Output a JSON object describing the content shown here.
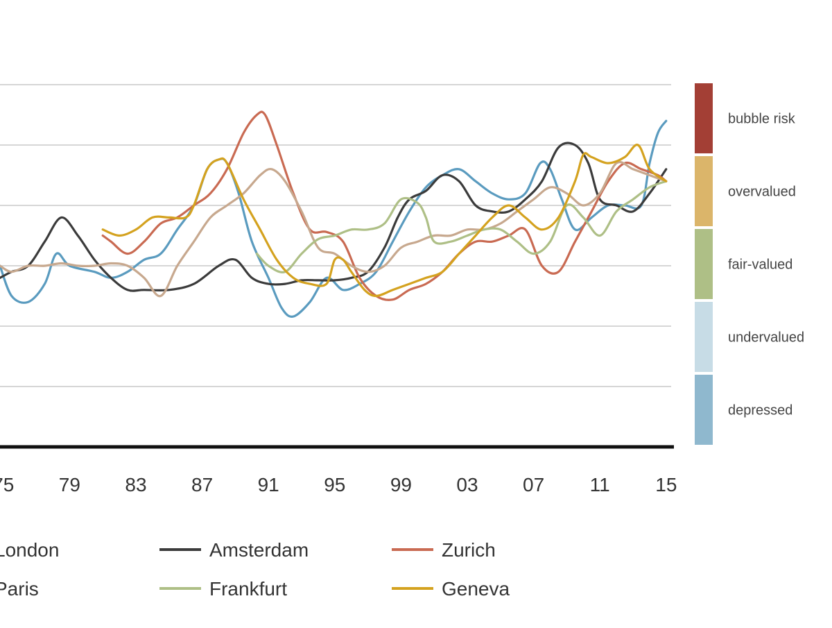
{
  "chart_data": {
    "type": "line",
    "title": "",
    "xlabel": "",
    "ylabel": "",
    "x_ticks": [
      {
        "value": 1975,
        "label": "75"
      },
      {
        "value": 1979,
        "label": "79"
      },
      {
        "value": 1983,
        "label": "83"
      },
      {
        "value": 1987,
        "label": "87"
      },
      {
        "value": 1991,
        "label": "91"
      },
      {
        "value": 1995,
        "label": "95"
      },
      {
        "value": 1999,
        "label": "99"
      },
      {
        "value": 2003,
        "label": "03"
      },
      {
        "value": 2007,
        "label": "07"
      },
      {
        "value": 2011,
        "label": "11"
      },
      {
        "value": 2015,
        "label": "15"
      }
    ],
    "xlim": [
      1974.8,
      2015.3
    ],
    "ylim": [
      -2.0,
      1.0
    ],
    "y_gridlines": [
      -1.5,
      -1.0,
      -0.5,
      0.0,
      0.5,
      1.0
    ],
    "grid": true,
    "bands": [
      {
        "label": "bubble risk",
        "color": "#a33f35"
      },
      {
        "label": "overvalued",
        "color": "#dbb56a"
      },
      {
        "label": "fair-valued",
        "color": "#aebf86"
      },
      {
        "label": "undervalued",
        "color": "#c7dce6"
      },
      {
        "label": "depressed",
        "color": "#8fb8ce"
      }
    ],
    "series": [
      {
        "name": "London",
        "color": "#5a9bbf",
        "x": [
          1974.8,
          1975.5,
          1976.5,
          1977.5,
          1978.2,
          1979,
          1980.5,
          1981.5,
          1982.5,
          1983.5,
          1984.5,
          1985.5,
          1986.5,
          1987.3,
          1988,
          1988.5,
          1989.2,
          1990,
          1991,
          1991.8,
          1992.5,
          1993.5,
          1994.5,
          1995.5,
          1996.5,
          1997.5,
          1998.5,
          1999.5,
          2000.5,
          2001.5,
          2002.5,
          2003.5,
          2004.5,
          2005.5,
          2006.5,
          2007.4,
          2008,
          2008.7,
          2009.5,
          2010.5,
          2011.5,
          2012.5,
          2013.5,
          2014,
          2014.5,
          2015
        ],
        "y": [
          -0.5,
          -0.75,
          -0.8,
          -0.65,
          -0.4,
          -0.5,
          -0.55,
          -0.6,
          -0.55,
          -0.45,
          -0.4,
          -0.2,
          0.0,
          0.3,
          0.38,
          0.35,
          0.1,
          -0.3,
          -0.6,
          -0.85,
          -0.92,
          -0.8,
          -0.6,
          -0.7,
          -0.65,
          -0.55,
          -0.3,
          -0.05,
          0.15,
          0.25,
          0.3,
          0.2,
          0.1,
          0.05,
          0.1,
          0.35,
          0.3,
          0.05,
          -0.2,
          -0.1,
          0.0,
          0.0,
          0.0,
          0.35,
          0.6,
          0.7
        ]
      },
      {
        "name": "Amsterdam",
        "color": "#3b3b3b",
        "x": [
          1974.8,
          1975.5,
          1976.5,
          1977.5,
          1978.5,
          1979.5,
          1980.5,
          1981.5,
          1982.5,
          1983.5,
          1985,
          1986.5,
          1988,
          1989,
          1990,
          1991,
          1992,
          1993,
          1994,
          1995,
          1996,
          1997,
          1998,
          1998.8,
          1999.5,
          2000.5,
          2001.5,
          2002.5,
          2003.5,
          2004.5,
          2005.5,
          2006.5,
          2007.5,
          2008.5,
          2009.5,
          2010.3,
          2011,
          2012,
          2013,
          2014,
          2015
        ],
        "y": [
          -0.6,
          -0.55,
          -0.5,
          -0.3,
          -0.1,
          -0.25,
          -0.45,
          -0.6,
          -0.7,
          -0.7,
          -0.7,
          -0.65,
          -0.5,
          -0.45,
          -0.6,
          -0.65,
          -0.65,
          -0.62,
          -0.62,
          -0.62,
          -0.6,
          -0.55,
          -0.35,
          -0.1,
          0.05,
          0.12,
          0.25,
          0.2,
          0.0,
          -0.05,
          -0.05,
          0.05,
          0.2,
          0.48,
          0.5,
          0.35,
          0.05,
          0.0,
          -0.05,
          0.1,
          0.3
        ]
      },
      {
        "name": "Zurich",
        "color": "#c96a52",
        "x": [
          1981,
          1981.5,
          1982.5,
          1983.5,
          1984.5,
          1985.5,
          1986.5,
          1987.5,
          1988.5,
          1989.5,
          1990.3,
          1990.8,
          1991.5,
          1992.5,
          1993.5,
          1994.5,
          1995.5,
          1996.5,
          1997.5,
          1998.5,
          1999.5,
          2000.5,
          2001.5,
          2002.5,
          2003.5,
          2004.5,
          2005.5,
          2006.5,
          2007.5,
          2008.5,
          2009.5,
          2010.5,
          2011.5,
          2012.5,
          2013.5,
          2014.5,
          2015
        ],
        "y": [
          -0.25,
          -0.3,
          -0.4,
          -0.3,
          -0.15,
          -0.1,
          0.0,
          0.1,
          0.3,
          0.6,
          0.75,
          0.75,
          0.5,
          0.1,
          -0.2,
          -0.22,
          -0.3,
          -0.6,
          -0.75,
          -0.78,
          -0.7,
          -0.65,
          -0.55,
          -0.4,
          -0.3,
          -0.3,
          -0.25,
          -0.2,
          -0.5,
          -0.55,
          -0.3,
          -0.05,
          0.2,
          0.35,
          0.3,
          0.25,
          0.2
        ]
      },
      {
        "name": "Paris",
        "color": "#c7a88e",
        "x": [
          1974.8,
          1975.5,
          1976.5,
          1977.5,
          1978.5,
          1979.5,
          1980.5,
          1981.5,
          1982.5,
          1983.5,
          1984.5,
          1985.5,
          1986.5,
          1987.5,
          1988.5,
          1989.5,
          1990.5,
          1991.2,
          1992,
          1993,
          1994,
          1995,
          1996,
          1997,
          1998,
          1999,
          2000,
          2001,
          2002,
          2003,
          2004,
          2005,
          2006,
          2007,
          2008,
          2009,
          2010,
          2011,
          2012,
          2013,
          2014,
          2015
        ],
        "y": [
          -0.5,
          -0.55,
          -0.5,
          -0.5,
          -0.48,
          -0.5,
          -0.5,
          -0.48,
          -0.5,
          -0.6,
          -0.75,
          -0.5,
          -0.3,
          -0.1,
          0.0,
          0.1,
          0.25,
          0.3,
          0.2,
          -0.05,
          -0.35,
          -0.4,
          -0.5,
          -0.55,
          -0.5,
          -0.35,
          -0.3,
          -0.25,
          -0.25,
          -0.2,
          -0.2,
          -0.15,
          -0.05,
          0.05,
          0.15,
          0.1,
          0.0,
          0.1,
          0.35,
          0.3,
          0.25,
          0.2
        ]
      },
      {
        "name": "Frankfurt",
        "color": "#aebf86",
        "x": [
          1990.3,
          1991,
          1992,
          1993,
          1994,
          1995,
          1996,
          1997,
          1998,
          1999,
          2000,
          2000.5,
          2001,
          2002,
          2003,
          2004,
          2005,
          2006,
          2007,
          2008,
          2009,
          2010,
          2011,
          2012,
          2013,
          2014,
          2015
        ],
        "y": [
          -0.4,
          -0.5,
          -0.55,
          -0.4,
          -0.28,
          -0.25,
          -0.2,
          -0.2,
          -0.15,
          0.05,
          0.02,
          -0.1,
          -0.3,
          -0.3,
          -0.25,
          -0.2,
          -0.2,
          -0.3,
          -0.4,
          -0.3,
          0.0,
          -0.1,
          -0.25,
          -0.05,
          0.05,
          0.15,
          0.2
        ]
      },
      {
        "name": "Geneva",
        "color": "#d4a21f",
        "x": [
          1981,
          1982,
          1983,
          1984,
          1985,
          1986,
          1986.5,
          1987.3,
          1988,
          1988.5,
          1989.5,
          1990.5,
          1991.5,
          1992.5,
          1993.5,
          1994.5,
          1995,
          1995.5,
          1996,
          1996.8,
          1997.5,
          1998.5,
          1999.5,
          2000.5,
          2001.5,
          2002.5,
          2003.5,
          2004.5,
          2005.5,
          2006.5,
          2007.5,
          2008.5,
          2009.5,
          2010,
          2010.5,
          2011.5,
          2012.5,
          2013.3,
          2014,
          2015
        ],
        "y": [
          -0.2,
          -0.25,
          -0.2,
          -0.1,
          -0.1,
          -0.1,
          0.0,
          0.3,
          0.38,
          0.35,
          0.05,
          -0.2,
          -0.45,
          -0.6,
          -0.65,
          -0.65,
          -0.45,
          -0.45,
          -0.55,
          -0.7,
          -0.75,
          -0.7,
          -0.65,
          -0.6,
          -0.55,
          -0.4,
          -0.25,
          -0.1,
          0.0,
          -0.1,
          -0.2,
          -0.1,
          0.2,
          0.42,
          0.4,
          0.35,
          0.4,
          0.5,
          0.3,
          0.2
        ]
      }
    ]
  }
}
